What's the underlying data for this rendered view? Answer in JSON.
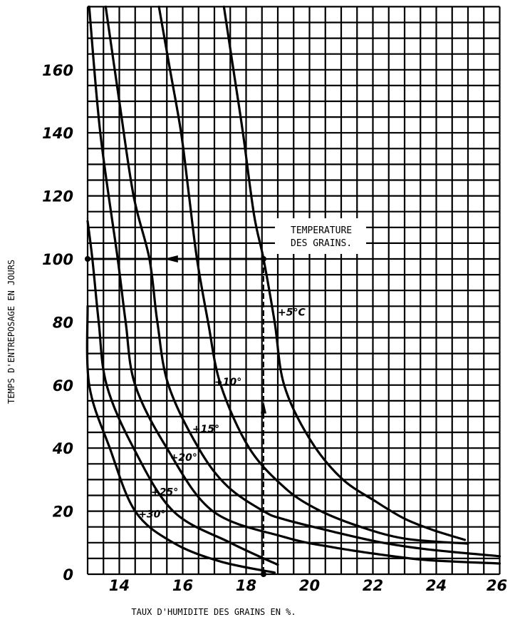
{
  "chart_data": {
    "type": "line",
    "title": "",
    "xlabel": "TAUX D'HUMIDITE DES GRAINS EN %.",
    "ylabel": "TEMPS D'ENTREPOSAGE EN JOURS",
    "xlim": [
      13,
      26
    ],
    "ylim": [
      0,
      180
    ],
    "xticks": [
      14,
      16,
      18,
      20,
      22,
      24,
      26
    ],
    "yticks": [
      0,
      20,
      40,
      60,
      80,
      100,
      120,
      140,
      160
    ],
    "grid": true,
    "grid_step": {
      "x": 0.5,
      "y": 5
    },
    "annotation": {
      "line1": "TEMPERATURE",
      "line2": "DES GRAINS."
    },
    "example_reading": {
      "x": 18.55,
      "y": 100
    },
    "series": [
      {
        "name": "+5°C",
        "points": [
          [
            17.3,
            180
          ],
          [
            17.6,
            160
          ],
          [
            17.9,
            140
          ],
          [
            18.25,
            114
          ],
          [
            18.55,
            100
          ],
          [
            18.9,
            80
          ],
          [
            19.2,
            60
          ],
          [
            20.0,
            43
          ],
          [
            21.0,
            30.5
          ],
          [
            22.1,
            23
          ],
          [
            23.0,
            17.6
          ],
          [
            23.9,
            14
          ],
          [
            24.9,
            10.9
          ]
        ]
      },
      {
        "name": "+10°",
        "points": [
          [
            15.25,
            180
          ],
          [
            15.6,
            160
          ],
          [
            15.95,
            140
          ],
          [
            16.2,
            120
          ],
          [
            16.45,
            100
          ],
          [
            16.8,
            80
          ],
          [
            17.2,
            60
          ],
          [
            18.1,
            40
          ],
          [
            19.2,
            27.6
          ],
          [
            20.2,
            20.8
          ],
          [
            21.5,
            15.4
          ],
          [
            23.0,
            11.3
          ],
          [
            25.0,
            9.7
          ]
        ]
      },
      {
        "name": "+15°",
        "points": [
          [
            13.57,
            180
          ],
          [
            14.0,
            150
          ],
          [
            14.45,
            120
          ],
          [
            14.95,
            100
          ],
          [
            15.2,
            80
          ],
          [
            15.55,
            60
          ],
          [
            16.5,
            40
          ],
          [
            17.4,
            28
          ],
          [
            18.55,
            20
          ],
          [
            19.2,
            17.4
          ],
          [
            20.7,
            13.6
          ],
          [
            22.2,
            10.2
          ],
          [
            23.7,
            7.9
          ],
          [
            26.0,
            5.7
          ]
        ]
      },
      {
        "name": "+20°",
        "points": [
          [
            13.05,
            180
          ],
          [
            13.4,
            140
          ],
          [
            13.95,
            100
          ],
          [
            14.2,
            80
          ],
          [
            14.5,
            60
          ],
          [
            15.5,
            40
          ],
          [
            16.95,
            20
          ],
          [
            19.2,
            11.8
          ],
          [
            20.7,
            8.6
          ],
          [
            22.2,
            6.3
          ],
          [
            23.7,
            4.5
          ],
          [
            26.0,
            3.4
          ]
        ]
      },
      {
        "name": "+25°",
        "points": [
          [
            13.0,
            112
          ],
          [
            13.15,
            100
          ],
          [
            13.35,
            80
          ],
          [
            13.6,
            60
          ],
          [
            14.45,
            40
          ],
          [
            15.7,
            20
          ],
          [
            17.5,
            10
          ],
          [
            19.0,
            3
          ]
        ]
      },
      {
        "name": "+30°",
        "points": [
          [
            13.0,
            85
          ],
          [
            13.05,
            60
          ],
          [
            13.7,
            40
          ],
          [
            14.5,
            20
          ],
          [
            15.7,
            10
          ],
          [
            17.2,
            4
          ],
          [
            18.9,
            0.5
          ]
        ]
      }
    ]
  }
}
